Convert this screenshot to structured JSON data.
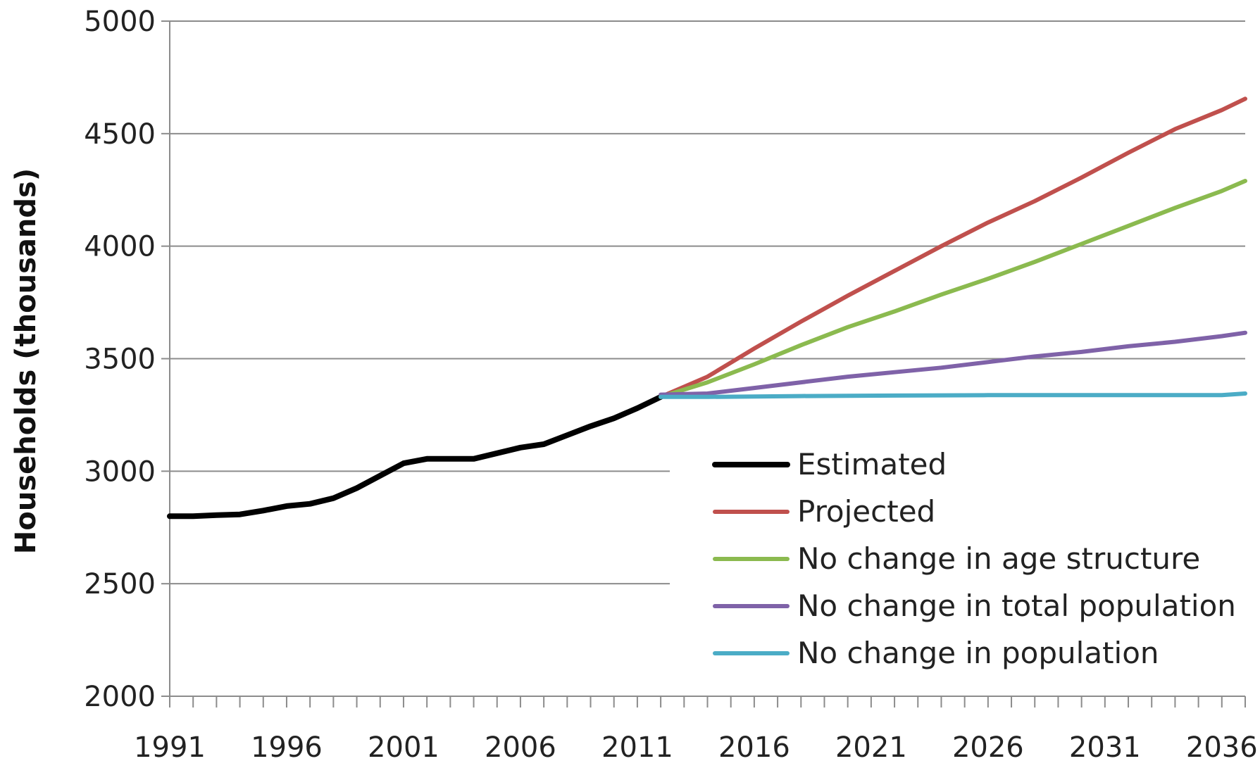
{
  "chart_data": {
    "type": "line",
    "title": "",
    "xlabel": "",
    "ylabel": "Households (thousands)",
    "xlim": [
      1991,
      2037
    ],
    "ylim": [
      2000,
      5000
    ],
    "x_ticks": [
      1991,
      1996,
      2001,
      2006,
      2011,
      2016,
      2021,
      2026,
      2031,
      2036
    ],
    "y_ticks": [
      2000,
      2500,
      3000,
      3500,
      4000,
      4500,
      5000
    ],
    "grid": "horizontal",
    "legend_position": "bottom-right",
    "series": [
      {
        "name": "Estimated",
        "color": "#000000",
        "points": [
          [
            1991,
            2800
          ],
          [
            1992,
            2800
          ],
          [
            1993,
            2805
          ],
          [
            1994,
            2808
          ],
          [
            1995,
            2825
          ],
          [
            1996,
            2845
          ],
          [
            1997,
            2855
          ],
          [
            1998,
            2880
          ],
          [
            1999,
            2925
          ],
          [
            2000,
            2980
          ],
          [
            2001,
            3035
          ],
          [
            2002,
            3055
          ],
          [
            2003,
            3055
          ],
          [
            2004,
            3055
          ],
          [
            2005,
            3080
          ],
          [
            2006,
            3105
          ],
          [
            2007,
            3120
          ],
          [
            2008,
            3160
          ],
          [
            2009,
            3200
          ],
          [
            2010,
            3235
          ],
          [
            2011,
            3280
          ],
          [
            2012,
            3330
          ]
        ]
      },
      {
        "name": "Projected",
        "color": "#c0504d",
        "points": [
          [
            2012,
            3330
          ],
          [
            2014,
            3420
          ],
          [
            2016,
            3545
          ],
          [
            2018,
            3665
          ],
          [
            2020,
            3780
          ],
          [
            2022,
            3890
          ],
          [
            2024,
            4000
          ],
          [
            2026,
            4105
          ],
          [
            2028,
            4200
          ],
          [
            2030,
            4305
          ],
          [
            2032,
            4415
          ],
          [
            2034,
            4520
          ],
          [
            2036,
            4605
          ],
          [
            2037,
            4655
          ]
        ]
      },
      {
        "name": "No change in age structure",
        "color": "#8bba4f",
        "points": [
          [
            2012,
            3330
          ],
          [
            2014,
            3395
          ],
          [
            2016,
            3475
          ],
          [
            2018,
            3560
          ],
          [
            2020,
            3640
          ],
          [
            2022,
            3710
          ],
          [
            2024,
            3785
          ],
          [
            2026,
            3855
          ],
          [
            2028,
            3930
          ],
          [
            2030,
            4010
          ],
          [
            2032,
            4090
          ],
          [
            2034,
            4170
          ],
          [
            2036,
            4245
          ],
          [
            2037,
            4290
          ]
        ]
      },
      {
        "name": "No change in total population",
        "color": "#7f62a8",
        "points": [
          [
            2012,
            3340
          ],
          [
            2014,
            3345
          ],
          [
            2016,
            3370
          ],
          [
            2018,
            3395
          ],
          [
            2020,
            3420
          ],
          [
            2022,
            3440
          ],
          [
            2024,
            3460
          ],
          [
            2026,
            3485
          ],
          [
            2028,
            3510
          ],
          [
            2030,
            3530
          ],
          [
            2032,
            3555
          ],
          [
            2034,
            3575
          ],
          [
            2036,
            3600
          ],
          [
            2037,
            3615
          ]
        ]
      },
      {
        "name": "No change in population",
        "color": "#4bacc6",
        "points": [
          [
            2012,
            3330
          ],
          [
            2014,
            3330
          ],
          [
            2016,
            3332
          ],
          [
            2018,
            3334
          ],
          [
            2020,
            3335
          ],
          [
            2022,
            3336
          ],
          [
            2024,
            3337
          ],
          [
            2026,
            3338
          ],
          [
            2028,
            3338
          ],
          [
            2030,
            3338
          ],
          [
            2032,
            3338
          ],
          [
            2034,
            3338
          ],
          [
            2036,
            3338
          ],
          [
            2037,
            3345
          ]
        ]
      }
    ]
  }
}
